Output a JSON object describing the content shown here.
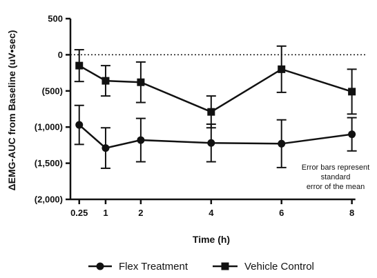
{
  "chart_data": {
    "type": "line",
    "xlabel": "Time (h)",
    "ylabel": "ΔEMG-AUC from Baseline (uV•sec)",
    "ylim": [
      -2000,
      500
    ],
    "xlim": [
      0,
      8.4
    ],
    "x_ticks": [
      0.25,
      1,
      2,
      4,
      6,
      8
    ],
    "x_tick_labels": [
      "0.25",
      "1",
      "2",
      "4",
      "6",
      "8"
    ],
    "y_ticks": [
      500,
      0,
      -500,
      -1000,
      -1500,
      -2000
    ],
    "y_tick_labels": [
      "500",
      "0",
      "(500)",
      "(1,000)",
      "(1,500)",
      "(2,000)"
    ],
    "reference_line": 0,
    "note_lines": [
      "Error bars represent",
      "standard",
      "error of the mean"
    ],
    "legend_position": "bottom",
    "series": [
      {
        "name": "Flex Treatment",
        "marker": "circle",
        "x": [
          0.25,
          1,
          2,
          4,
          6,
          8
        ],
        "y": [
          -970,
          -1290,
          -1180,
          -1220,
          -1230,
          -1100
        ],
        "err": [
          270,
          280,
          300,
          260,
          330,
          230
        ]
      },
      {
        "name": "Vehicle Control",
        "marker": "square",
        "x": [
          0.25,
          1,
          2,
          4,
          6,
          8
        ],
        "y": [
          -150,
          -360,
          -380,
          -790,
          -200,
          -510
        ],
        "err": [
          220,
          210,
          280,
          220,
          320,
          310
        ]
      }
    ]
  }
}
